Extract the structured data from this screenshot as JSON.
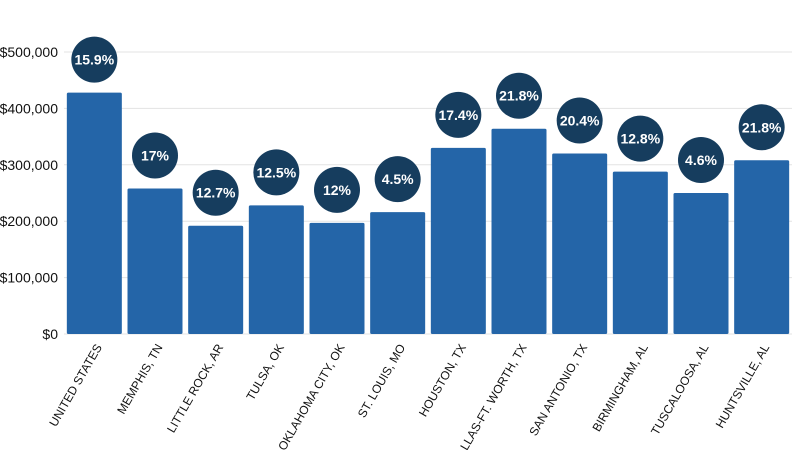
{
  "chart_data": {
    "type": "bar",
    "categories": [
      "UNITED STATES",
      "MEMPHIS, TN",
      "LITTLE ROCK, AR",
      "TULSA, OK",
      "OKLAHOMA CITY, OK",
      "ST. LOUIS, MO",
      "HOUSTON, TX",
      "DALLAS-FT. WORTH, TX",
      "SAN ANTONIO, TX",
      "BIRMINGHAM, AL",
      "TUSCALOOSA, AL",
      "HUNTSVILLE, AL"
    ],
    "values": [
      428000,
      258000,
      192000,
      228000,
      197000,
      216000,
      330000,
      364000,
      320000,
      288000,
      250000,
      308000
    ],
    "data_labels": [
      "15.9%",
      "17%",
      "12.7%",
      "12.5%",
      "12%",
      "4.5%",
      "17.4%",
      "21.8%",
      "20.4%",
      "12.8%",
      "4.6%",
      "21.8%"
    ],
    "y_ticks": [
      0,
      100000,
      200000,
      300000,
      400000,
      500000
    ],
    "y_tick_labels": [
      "$0",
      "$100,000",
      "$200,000",
      "$300,000",
      "$400,000",
      "$500,000"
    ],
    "ylim": [
      0,
      500000
    ],
    "grid": true,
    "legend": "none",
    "title": "",
    "xlabel": "",
    "ylabel": "",
    "colors": {
      "bar": "#2465a8",
      "badge": "#163d5e",
      "badge_text": "#ffffff",
      "grid": "#e3e3e3",
      "text": "#111111"
    }
  }
}
